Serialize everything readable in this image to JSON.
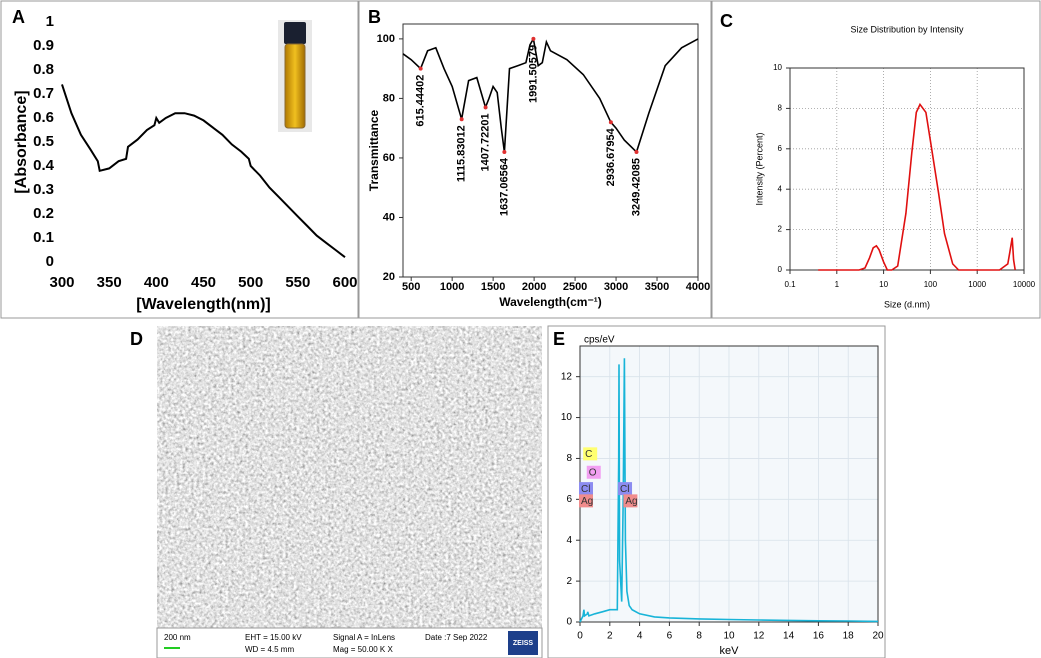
{
  "chart_data": [
    {
      "type": "line",
      "panel": "A",
      "xlabel": "[Wavelength(nm)]",
      "ylabel": "[Absorbance]",
      "xlim": [
        300,
        600
      ],
      "xticks": [
        300,
        350,
        400,
        450,
        500,
        550,
        600
      ],
      "ylim": [
        0,
        1
      ],
      "yticks": [
        0,
        0.1,
        0.2,
        0.3,
        0.4,
        0.5,
        0.6,
        0.7,
        0.8,
        0.9,
        1
      ],
      "color": "#000000",
      "grid": false,
      "x": [
        300,
        310,
        320,
        330,
        338,
        340,
        350,
        360,
        368,
        370,
        380,
        390,
        398,
        400,
        403,
        410,
        420,
        430,
        440,
        450,
        460,
        470,
        480,
        490,
        498,
        500,
        510,
        520,
        530,
        540,
        550,
        560,
        570,
        580,
        590,
        600
      ],
      "values": [
        0.74,
        0.62,
        0.53,
        0.47,
        0.42,
        0.38,
        0.39,
        0.42,
        0.43,
        0.48,
        0.51,
        0.55,
        0.57,
        0.6,
        0.58,
        0.6,
        0.62,
        0.62,
        0.61,
        0.59,
        0.56,
        0.53,
        0.49,
        0.46,
        0.43,
        0.4,
        0.36,
        0.31,
        0.27,
        0.23,
        0.19,
        0.15,
        0.11,
        0.08,
        0.05,
        0.02
      ]
    },
    {
      "type": "line",
      "panel": "B",
      "xlabel": "Wavelength(cm⁻¹)",
      "ylabel": "Transmittance",
      "xlim": [
        400,
        4000
      ],
      "xticks": [
        500,
        1000,
        1500,
        2000,
        2500,
        3000,
        3500,
        4000
      ],
      "ylim": [
        20,
        105
      ],
      "yticks": [
        20,
        40,
        60,
        80,
        100
      ],
      "color": "#000000",
      "grid": false,
      "x": [
        400,
        500,
        615,
        700,
        800,
        900,
        1000,
        1115,
        1200,
        1300,
        1407,
        1450,
        1500,
        1550,
        1600,
        1637,
        1700,
        1800,
        1900,
        1950,
        1991,
        2050,
        2100,
        2150,
        2200,
        2400,
        2600,
        2800,
        2936,
        3000,
        3100,
        3249,
        3400,
        3600,
        3800,
        4000
      ],
      "values": [
        95,
        93,
        90,
        96,
        97,
        90,
        84,
        73,
        86,
        87,
        77,
        80,
        84,
        82,
        70,
        62,
        90,
        91,
        92,
        98,
        100,
        91,
        92,
        99,
        96,
        93,
        88,
        80,
        72,
        70,
        66,
        62,
        75,
        91,
        97,
        100
      ],
      "annotations": [
        {
          "x": 615.44402,
          "y": 90,
          "label": "615.44402"
        },
        {
          "x": 1115.83012,
          "y": 73,
          "label": "1115.83012"
        },
        {
          "x": 1407.72201,
          "y": 77,
          "label": "1407.72201"
        },
        {
          "x": 1637.06564,
          "y": 62,
          "label": "1637.06564"
        },
        {
          "x": 1991.50579,
          "y": 100,
          "label": "1991.50579"
        },
        {
          "x": 2936.67954,
          "y": 72,
          "label": "2936.67954"
        },
        {
          "x": 3249.42085,
          "y": 62,
          "label": "3249.42085"
        }
      ]
    },
    {
      "type": "line",
      "panel": "C",
      "title": "Size Distribution by Intensity",
      "xlabel": "Size (d.nm)",
      "ylabel": "Intensity (Percent)",
      "xscale": "log",
      "xlim": [
        0.1,
        10000
      ],
      "xticks": [
        0.1,
        1,
        10,
        100,
        1000,
        10000
      ],
      "ylim": [
        0,
        10
      ],
      "yticks": [
        0,
        2,
        4,
        6,
        8,
        10
      ],
      "color": "#e01010",
      "grid": true,
      "x": [
        0.4,
        3,
        4,
        5,
        6,
        7,
        8,
        10,
        12,
        15,
        20,
        30,
        40,
        50,
        60,
        80,
        100,
        150,
        200,
        300,
        400,
        1000,
        3000,
        4500,
        5000,
        5600,
        6000,
        6500
      ],
      "values": [
        0,
        0,
        0.1,
        0.6,
        1.1,
        1.2,
        1,
        0.4,
        0,
        0,
        0.2,
        2.8,
        5.8,
        7.8,
        8.2,
        7.8,
        6.4,
        3.8,
        1.8,
        0.3,
        0,
        0,
        0,
        0.3,
        0.9,
        1.6,
        0.5,
        0
      ]
    },
    {
      "type": "line",
      "panel": "E",
      "xlabel": "keV",
      "ylabel": "cps/eV",
      "xlim": [
        0,
        20
      ],
      "xticks": [
        0,
        2,
        4,
        6,
        8,
        10,
        12,
        14,
        16,
        18,
        20
      ],
      "ylim": [
        0,
        13.5
      ],
      "yticks": [
        0,
        2,
        4,
        6,
        8,
        10,
        12
      ],
      "color": "#18b4d8",
      "grid": true,
      "x": [
        0,
        0.2,
        0.26,
        0.3,
        0.5,
        0.52,
        0.6,
        1,
        1.5,
        2,
        2.5,
        2.6,
        2.62,
        2.66,
        2.8,
        2.9,
        2.98,
        3.05,
        3.15,
        3.3,
        3.5,
        4,
        5,
        6,
        8,
        10,
        12,
        14,
        16,
        18,
        20
      ],
      "values": [
        0,
        0.3,
        0.6,
        0.3,
        0.4,
        0.5,
        0.3,
        0.4,
        0.5,
        0.6,
        0.6,
        8,
        12.6,
        3,
        1,
        6,
        12.9,
        4,
        1.5,
        0.8,
        0.6,
        0.4,
        0.25,
        0.2,
        0.15,
        0.12,
        0.1,
        0.08,
        0.06,
        0.05,
        0.03
      ],
      "annotations": [
        {
          "x": 0.28,
          "y": 8.2,
          "label": "C",
          "color": "#ffff70"
        },
        {
          "x": 0.52,
          "y": 7.3,
          "label": "O",
          "color": "#f2a0f2"
        },
        {
          "x": 0,
          "y": 6.5,
          "label": "Cl",
          "color": "#8c8cf0"
        },
        {
          "x": 0,
          "y": 5.9,
          "label": "Ag",
          "color": "#f08c8c"
        },
        {
          "x": 2.62,
          "y": 6.5,
          "label": "Cl",
          "color": "#8c8cf0"
        },
        {
          "x": 2.98,
          "y": 5.9,
          "label": "Ag",
          "color": "#f08c8c"
        }
      ]
    }
  ],
  "sem_panel": {
    "panel": "D",
    "scale_bar": "200 nm",
    "eht": "EHT = 15.00 kV",
    "wd": "WD = 4.5 mm",
    "signal": "Signal A = InLens",
    "mag": "Mag =  50.00 K X",
    "date": "Date :7 Sep 2022",
    "brand": "ZEISS"
  }
}
